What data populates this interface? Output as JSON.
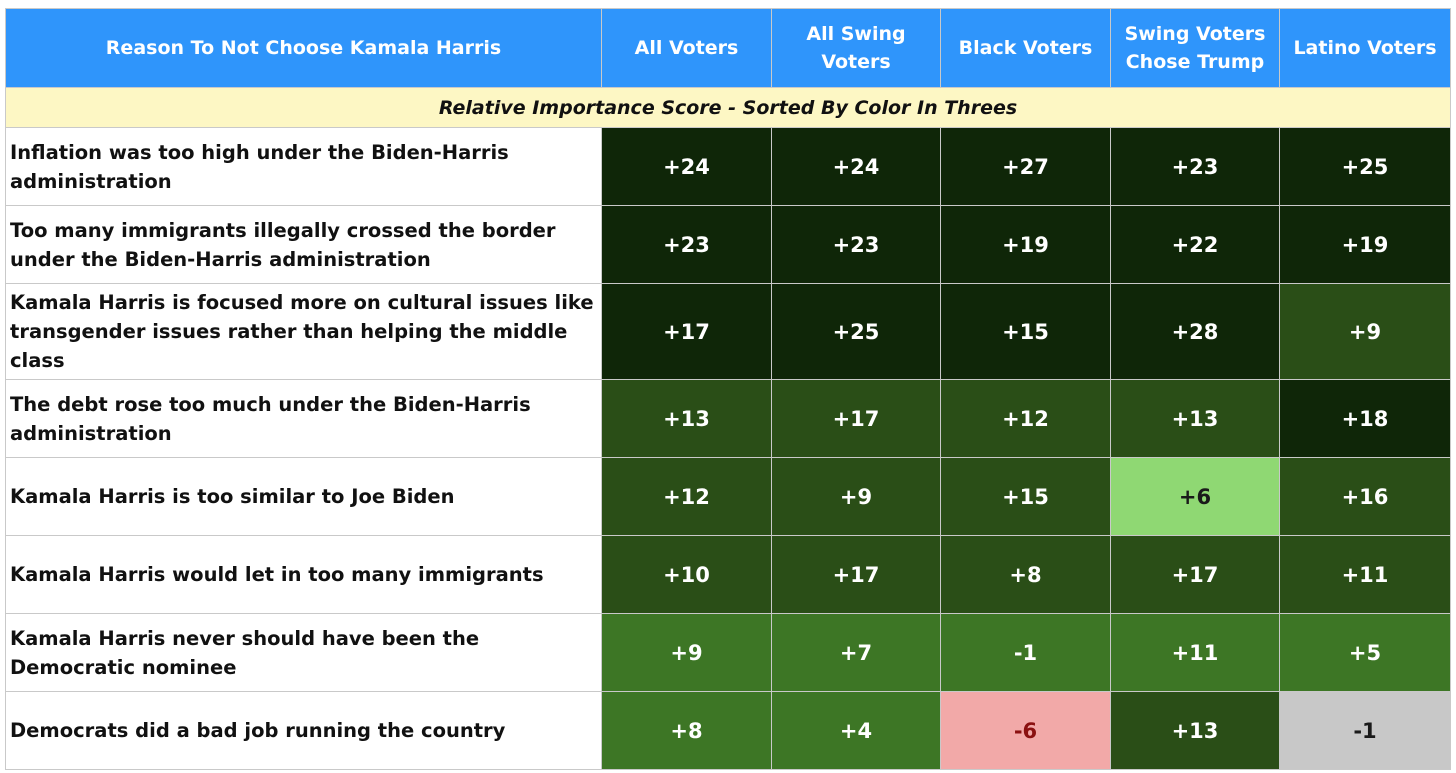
{
  "headers": [
    "Reason To Not Choose Kamala Harris",
    "All Voters",
    "All Swing Voters",
    "Black Voters",
    "Swing Voters Chose Trump",
    "Latino Voters"
  ],
  "subtitle": "Relative Importance Score - Sorted By Color In Threes",
  "colors": {
    "header_bg": "#2f95fb",
    "subtitle_bg": "#fdf7c4",
    "darkest_green": "#0f2608",
    "dark_green": "#2a4e17",
    "medium_green": "#3d7625",
    "light_green": "#8fd873",
    "pink": "#f2a9a8",
    "gray": "#c8c8c8"
  },
  "chart_data": {
    "type": "table",
    "columns": [
      "All Voters",
      "All Swing Voters",
      "Black Voters",
      "Swing Voters Chose Trump",
      "Latino Voters"
    ],
    "rows": [
      {
        "reason": "Inflation was too high under the Biden-Harris administration",
        "values": [
          "+24",
          "+24",
          "+27",
          "+23",
          "+25"
        ],
        "tiers": [
          "darkest",
          "darkest",
          "darkest",
          "darkest",
          "darkest"
        ]
      },
      {
        "reason": "Too many immigrants illegally crossed the border under the Biden-Harris administration",
        "values": [
          "+23",
          "+23",
          "+19",
          "+22",
          "+19"
        ],
        "tiers": [
          "darkest",
          "darkest",
          "darkest",
          "darkest",
          "darkest"
        ]
      },
      {
        "reason": "Kamala Harris is focused more on cultural issues like transgender issues rather than helping the middle class",
        "values": [
          "+17",
          "+25",
          "+15",
          "+28",
          "+9"
        ],
        "tiers": [
          "darkest",
          "darkest",
          "darkest",
          "darkest",
          "dark"
        ]
      },
      {
        "reason": "The debt rose too much under the Biden-Harris administration",
        "values": [
          "+13",
          "+17",
          "+12",
          "+13",
          "+18"
        ],
        "tiers": [
          "dark",
          "dark",
          "dark",
          "dark",
          "darkest"
        ]
      },
      {
        "reason": "Kamala Harris is too similar to Joe Biden",
        "values": [
          "+12",
          "+9",
          "+15",
          "+6",
          "+16"
        ],
        "tiers": [
          "dark",
          "dark",
          "dark",
          "light",
          "dark"
        ]
      },
      {
        "reason": "Kamala Harris would let in too many immigrants",
        "values": [
          "+10",
          "+17",
          "+8",
          "+17",
          "+11"
        ],
        "tiers": [
          "dark",
          "dark",
          "dark",
          "dark",
          "dark"
        ]
      },
      {
        "reason": "Kamala Harris never should have been the Democratic nominee",
        "values": [
          "+9",
          "+7",
          "-1",
          "+11",
          "+5"
        ],
        "tiers": [
          "medium",
          "medium",
          "medium",
          "medium",
          "medium"
        ]
      },
      {
        "reason": "Democrats did a bad job running the country",
        "values": [
          "+8",
          "+4",
          "-6",
          "+13",
          "-1"
        ],
        "tiers": [
          "medium",
          "medium",
          "pink",
          "dark",
          "gray"
        ]
      }
    ]
  }
}
